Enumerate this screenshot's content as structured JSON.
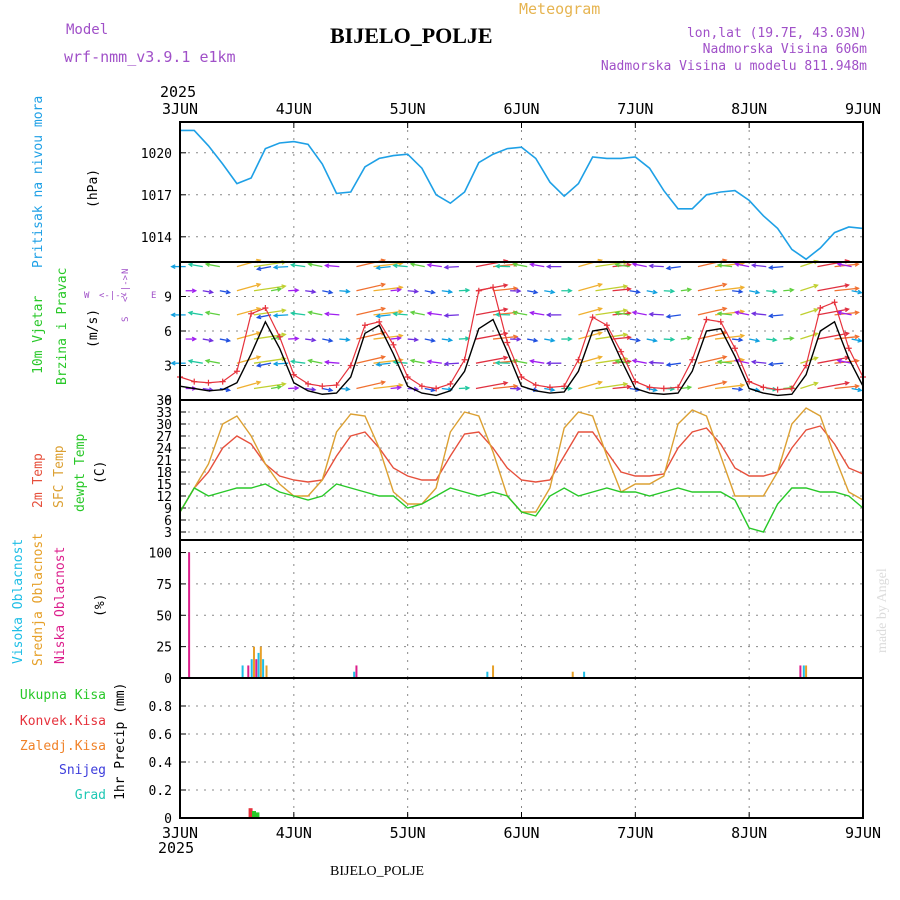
{
  "header": {
    "title": "BIJELO_POLJE",
    "subtitle": "Meteogram",
    "model_label": "Model",
    "model_name": "wrf-nmm_v3.9.1  e1km",
    "location_coords": "lon,lat (19.7E, 43.03N)",
    "elevation": "Nadmorska Visina 606m",
    "model_elevation": "Nadmorska Visina u modelu 811.948m",
    "footer_title": "BIJELO_POLJE",
    "credit": "made by Angel"
  },
  "colors": {
    "pressure": "#1ea0e6",
    "temp2m": "#e6503c",
    "sfc_temp": "#dca032",
    "dewpt": "#28c828",
    "wind_speed": "#000000",
    "wind_gust": "#e6323c",
    "high_cloud": "#1ebee6",
    "mid_cloud": "#e6a028",
    "low_cloud": "#dc1e8c",
    "total_precip": "#28c828",
    "conv_precip": "#e6323c",
    "frozen_precip": "#f08228",
    "snow": "#3c3cdc",
    "hail": "#1ec8b4",
    "model_label": "#a050c8",
    "meteogram_label": "#e6b450"
  },
  "chart_data": [
    {
      "type": "line",
      "name": "pressure",
      "ylabel": "Pritisak na nivou mora",
      "unit": "(hPa)",
      "yticks": [
        1014,
        1017,
        1020
      ],
      "ylim": [
        1012.2,
        1022.2
      ],
      "x_days": [
        0,
        0.125,
        0.25,
        0.375,
        0.5,
        0.625,
        0.75,
        0.875,
        1,
        1.125,
        1.25,
        1.375,
        1.5,
        1.625,
        1.75,
        1.875,
        2,
        2.125,
        2.25,
        2.375,
        2.5,
        2.625,
        2.75,
        2.875,
        3,
        3.125,
        3.25,
        3.375,
        3.5,
        3.625,
        3.75,
        3.875,
        4,
        4.125,
        4.25,
        4.375,
        4.5,
        4.625,
        4.75,
        4.875,
        5,
        5.125,
        5.25,
        5.375,
        5.5,
        5.625,
        5.75,
        5.875,
        6
      ],
      "series": [
        {
          "values": [
            1021.6,
            1021.6,
            1020.5,
            1019.2,
            1017.8,
            1018.2,
            1020.3,
            1020.7,
            1020.8,
            1020.6,
            1019.2,
            1017.1,
            1017.2,
            1019.0,
            1019.6,
            1019.8,
            1019.9,
            1018.9,
            1017.0,
            1016.4,
            1017.2,
            1019.3,
            1019.9,
            1020.3,
            1020.4,
            1019.6,
            1017.9,
            1016.9,
            1017.8,
            1019.7,
            1019.6,
            1019.6,
            1019.7,
            1018.9,
            1017.3,
            1016.0,
            1016.0,
            1017.0,
            1017.2,
            1017.3,
            1016.6,
            1015.5,
            1014.6,
            1013.1,
            1012.4,
            1013.2,
            1014.3,
            1014.7,
            1014.6
          ]
        }
      ]
    },
    {
      "type": "line",
      "name": "wind",
      "ylabel": "10m Vjetar",
      "ylabel2": "Brzina i Pravac",
      "unit": "(m/s)",
      "compass": {
        "n": "N",
        "w": "W",
        "e": "E",
        "s": "S"
      },
      "yticks": [
        0,
        3,
        6,
        9
      ],
      "ylim": [
        0,
        12
      ],
      "x_days": [
        0,
        0.125,
        0.25,
        0.375,
        0.5,
        0.625,
        0.75,
        0.875,
        1,
        1.125,
        1.25,
        1.375,
        1.5,
        1.625,
        1.75,
        1.875,
        2,
        2.125,
        2.25,
        2.375,
        2.5,
        2.625,
        2.75,
        2.875,
        3,
        3.125,
        3.25,
        3.375,
        3.5,
        3.625,
        3.75,
        3.875,
        4,
        4.125,
        4.25,
        4.375,
        4.5,
        4.625,
        4.75,
        4.875,
        5,
        5.125,
        5.25,
        5.375,
        5.5,
        5.625,
        5.75,
        5.875,
        6
      ],
      "series": [
        {
          "name": "speed",
          "values": [
            1.2,
            1.0,
            0.8,
            0.9,
            1.5,
            4.0,
            6.8,
            4.5,
            1.5,
            0.8,
            0.5,
            0.6,
            2.0,
            5.8,
            6.5,
            4.0,
            1.2,
            0.6,
            0.4,
            0.8,
            2.5,
            6.2,
            7.0,
            4.2,
            1.2,
            0.8,
            0.6,
            0.7,
            2.5,
            6.0,
            6.2,
            3.5,
            1.0,
            0.6,
            0.5,
            0.6,
            2.5,
            6.0,
            6.2,
            3.8,
            1.0,
            0.6,
            0.4,
            0.5,
            2.2,
            6.0,
            6.8,
            3.6,
            1.2
          ]
        },
        {
          "name": "gust",
          "values": [
            2.0,
            1.6,
            1.5,
            1.6,
            2.5,
            7.5,
            8.0,
            5.5,
            2.2,
            1.4,
            1.2,
            1.3,
            3.0,
            6.5,
            6.8,
            4.8,
            2.0,
            1.2,
            1.0,
            1.4,
            3.5,
            9.5,
            9.8,
            5.0,
            2.0,
            1.3,
            1.1,
            1.2,
            3.5,
            7.2,
            6.5,
            4.2,
            1.6,
            1.1,
            1.0,
            1.1,
            3.5,
            7.0,
            6.8,
            4.5,
            1.6,
            1.1,
            0.9,
            1.0,
            3.0,
            8.0,
            8.5,
            4.5,
            2.0
          ]
        }
      ]
    },
    {
      "type": "line",
      "name": "temperature",
      "ylabels": [
        "2m Temp",
        "SFC Temp",
        "dewpt Temp"
      ],
      "unit": "(C)",
      "yticks": [
        3,
        6,
        9,
        12,
        15,
        18,
        21,
        24,
        27,
        30,
        33,
        36
      ],
      "ylim": [
        1,
        36
      ],
      "x_days": [
        0,
        0.125,
        0.25,
        0.375,
        0.5,
        0.625,
        0.75,
        0.875,
        1,
        1.125,
        1.25,
        1.375,
        1.5,
        1.625,
        1.75,
        1.875,
        2,
        2.125,
        2.25,
        2.375,
        2.5,
        2.625,
        2.75,
        2.875,
        3,
        3.125,
        3.25,
        3.375,
        3.5,
        3.625,
        3.75,
        3.875,
        4,
        4.125,
        4.25,
        4.375,
        4.5,
        4.625,
        4.75,
        4.875,
        5,
        5.125,
        5.25,
        5.375,
        5.5,
        5.625,
        5.75,
        5.875,
        6
      ],
      "series": [
        {
          "name": "2m",
          "values": [
            8,
            14,
            18,
            24,
            27,
            25,
            20,
            17,
            16,
            15.5,
            16,
            22,
            27,
            28,
            24,
            19,
            17,
            16,
            16,
            22,
            27.5,
            28,
            24,
            19,
            16,
            15.5,
            16,
            22,
            28,
            28,
            23,
            18,
            17,
            17,
            17.5,
            24,
            28,
            29,
            25,
            19,
            17,
            17,
            18,
            24,
            28.5,
            29.5,
            25,
            19,
            17.5
          ]
        },
        {
          "name": "sfc",
          "values": [
            8,
            14,
            20,
            30,
            32,
            27,
            20,
            15,
            12,
            12,
            16,
            28,
            32.5,
            32,
            24,
            13,
            10,
            10,
            14,
            28,
            33,
            32,
            23,
            12,
            8,
            8,
            14,
            29,
            33,
            32,
            22,
            13,
            15,
            15,
            17,
            30,
            33.5,
            32,
            22,
            12,
            12,
            12,
            18,
            30,
            34,
            32,
            22,
            13,
            11
          ]
        },
        {
          "name": "dewpt",
          "values": [
            8,
            14,
            12,
            13,
            14,
            14,
            15,
            13,
            12,
            11,
            12,
            15,
            14,
            13,
            12,
            12,
            9,
            10,
            12,
            14,
            13,
            12,
            13,
            12,
            8,
            7,
            12,
            14,
            12,
            13,
            14,
            13,
            13,
            12,
            13,
            14,
            13,
            13,
            13,
            11,
            4,
            3,
            10,
            14,
            14,
            13,
            13,
            12,
            9
          ]
        }
      ]
    },
    {
      "type": "bar",
      "name": "cloud",
      "ylabels": [
        "Visoka Oblacnost",
        "Srednja Oblacnost",
        "Niska Oblacnost"
      ],
      "unit": "(%)",
      "yticks": [
        0,
        25,
        50,
        75,
        100
      ],
      "ylim": [
        0,
        110
      ],
      "bars": [
        {
          "x": 0.08,
          "series": "low",
          "value": 100
        },
        {
          "x": 0.55,
          "series": "high",
          "value": 10
        },
        {
          "x": 0.6,
          "series": "low",
          "value": 10
        },
        {
          "x": 0.63,
          "series": "high",
          "value": 15
        },
        {
          "x": 0.65,
          "series": "mid",
          "value": 25
        },
        {
          "x": 0.67,
          "series": "low",
          "value": 15
        },
        {
          "x": 0.69,
          "series": "high",
          "value": 20
        },
        {
          "x": 0.71,
          "series": "mid",
          "value": 25
        },
        {
          "x": 0.73,
          "series": "high",
          "value": 15
        },
        {
          "x": 0.76,
          "series": "mid",
          "value": 10
        },
        {
          "x": 1.53,
          "series": "high",
          "value": 5
        },
        {
          "x": 1.55,
          "series": "low",
          "value": 10
        },
        {
          "x": 2.7,
          "series": "high",
          "value": 5
        },
        {
          "x": 2.75,
          "series": "mid",
          "value": 10
        },
        {
          "x": 3.45,
          "series": "mid",
          "value": 5
        },
        {
          "x": 3.55,
          "series": "high",
          "value": 5
        },
        {
          "x": 5.45,
          "series": "low",
          "value": 10
        },
        {
          "x": 5.48,
          "series": "high",
          "value": 10
        },
        {
          "x": 5.5,
          "series": "mid",
          "value": 10
        }
      ]
    },
    {
      "type": "bar",
      "name": "precipitation",
      "ylabels": [
        "Ukupna Kisa",
        "Konvek.Kisa",
        "Zaledj.Kisa",
        "Snijeg",
        "Grad"
      ],
      "unit": "1hr Precip (mm)",
      "yticks": [
        0,
        0.2,
        0.4,
        0.6,
        0.8
      ],
      "ylim": [
        0,
        1.0
      ],
      "bars": [
        {
          "x": 0.62,
          "series": "conv",
          "value": 0.07
        },
        {
          "x": 0.65,
          "series": "total",
          "value": 0.05
        },
        {
          "x": 0.68,
          "series": "total",
          "value": 0.04
        }
      ]
    }
  ],
  "x_axis": {
    "year": "2025",
    "ticks": [
      "3JUN",
      "4JUN",
      "5JUN",
      "6JUN",
      "7JUN",
      "8JUN",
      "9JUN"
    ]
  }
}
